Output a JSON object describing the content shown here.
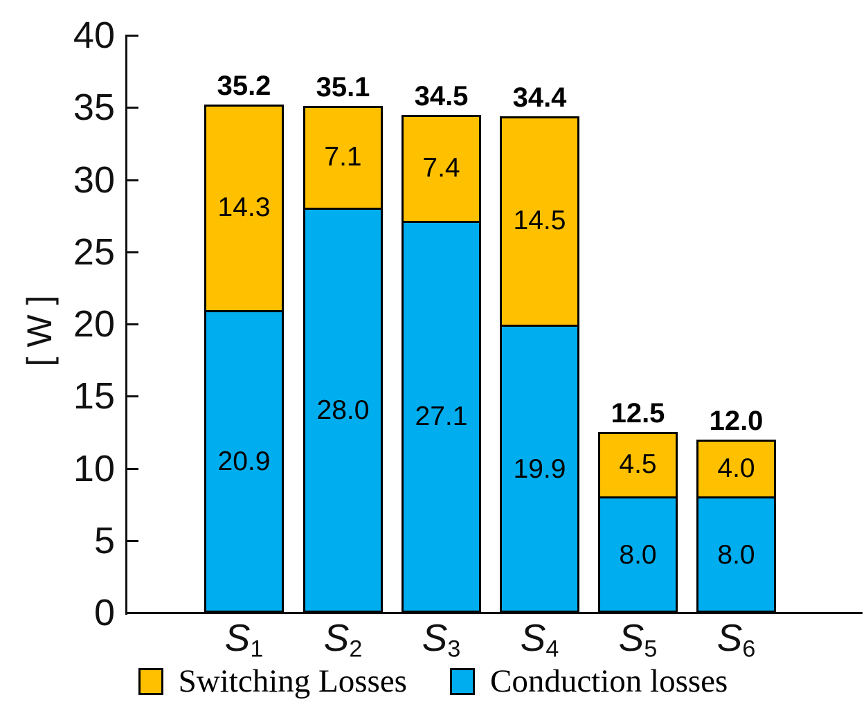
{
  "chart_data": {
    "type": "bar",
    "stacked": true,
    "title": "",
    "xlabel": "",
    "ylabel": "[ W ]",
    "ylim": [
      0,
      40
    ],
    "yticks": [
      0,
      5,
      10,
      15,
      20,
      25,
      30,
      35,
      40
    ],
    "grid": false,
    "legend_position": "bottom",
    "categories": [
      {
        "base": "S",
        "sub": "1"
      },
      {
        "base": "S",
        "sub": "2"
      },
      {
        "base": "S",
        "sub": "3"
      },
      {
        "base": "S",
        "sub": "4"
      },
      {
        "base": "S",
        "sub": "5"
      },
      {
        "base": "S",
        "sub": "6"
      }
    ],
    "series": [
      {
        "name": "Conduction losses",
        "stack_position": "bottom",
        "color": "#00AEEF",
        "values": [
          20.9,
          28.0,
          27.1,
          19.9,
          8.0,
          8.0
        ],
        "value_labels": [
          "20.9",
          "28.0",
          "27.1",
          "19.9",
          "8.0",
          "8.0"
        ]
      },
      {
        "name": "Switching Losses",
        "stack_position": "top",
        "color": "#FFC000",
        "values": [
          14.3,
          7.1,
          7.4,
          14.5,
          4.5,
          4.0
        ],
        "value_labels": [
          "14.3",
          "7.1",
          "7.4",
          "14.5",
          "4.5",
          "4.0"
        ]
      }
    ],
    "totals": [
      "35.2",
      "35.1",
      "34.5",
      "34.4",
      "12.5",
      "12.0"
    ],
    "legend": [
      {
        "label": "Switching Losses",
        "color": "#FFC000"
      },
      {
        "label": "Conduction losses",
        "color": "#00AEEF"
      }
    ],
    "colors": {
      "switching": "#FFC000",
      "conduction": "#00AEEF",
      "axis": "#111111",
      "text": "#000000"
    }
  }
}
